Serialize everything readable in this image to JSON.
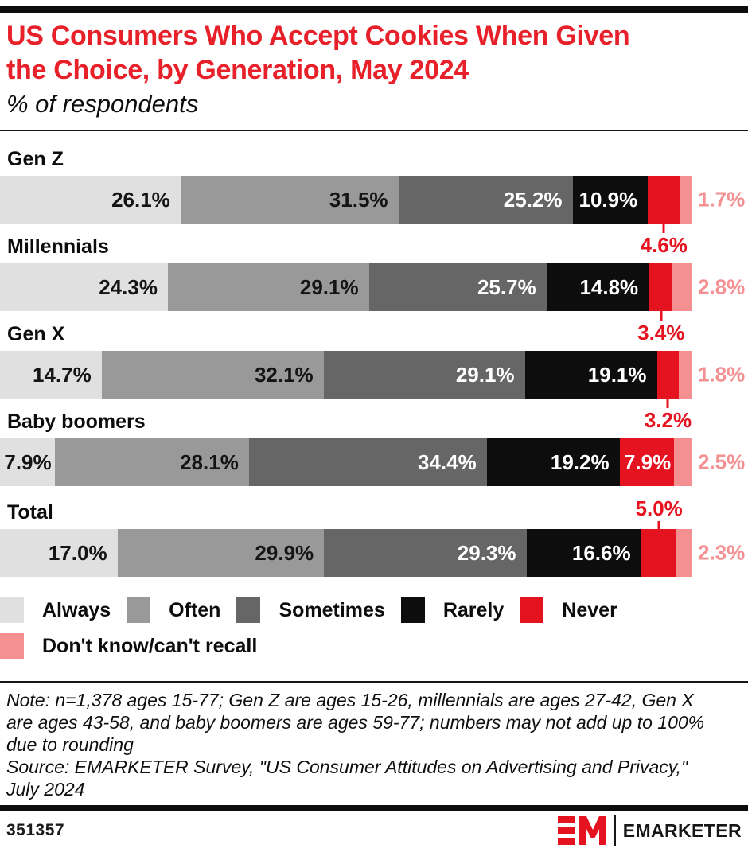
{
  "page": {
    "title_line1": "US Consumers Who Accept Cookies When Given",
    "title_line2": "the Choice, by Generation, May 2024",
    "subtitle": "% of respondents"
  },
  "colors": {
    "title_red": "#e7202a",
    "callout_red": "#e5131f",
    "Always": "#e0e0e0",
    "Often": "#999999",
    "Sometimes": "#666666",
    "Rarely": "#0d0d0d",
    "Never": "#e5131f",
    "Don't know/can't recall": "#f48f92"
  },
  "chart_data": {
    "type": "bar",
    "orientation": "horizontal_stacked",
    "title": "US Consumers Who Accept Cookies When Given the Choice, by Generation, May 2024",
    "subtitle": "% of respondents",
    "unit": "%",
    "xlim": [
      0,
      100
    ],
    "value_suffix": "%",
    "categories": [
      "Gen Z",
      "Millennials",
      "Gen X",
      "Baby boomers",
      "Total"
    ],
    "series": [
      {
        "name": "Always",
        "values": [
          26.1,
          24.3,
          14.7,
          7.9,
          17.0
        ]
      },
      {
        "name": "Often",
        "values": [
          31.5,
          29.1,
          32.1,
          28.1,
          29.9
        ]
      },
      {
        "name": "Sometimes",
        "values": [
          25.2,
          25.7,
          29.1,
          34.4,
          29.3
        ]
      },
      {
        "name": "Rarely",
        "values": [
          10.9,
          14.8,
          19.1,
          19.2,
          16.6
        ]
      },
      {
        "name": "Never",
        "values": [
          4.6,
          3.4,
          3.2,
          7.9,
          5.0
        ]
      },
      {
        "name": "Don't know/can't recall",
        "values": [
          1.7,
          2.8,
          1.8,
          2.5,
          2.3
        ]
      }
    ],
    "never_label_position": [
      "below",
      "below",
      "below",
      "inside",
      "above"
    ],
    "legend_position": "bottom"
  },
  "legend": {
    "rows": [
      [
        "Always",
        "Often",
        "Sometimes",
        "Rarely",
        "Never"
      ],
      [
        "Don't know/can't recall"
      ]
    ]
  },
  "note": {
    "note_text": "Note: n=1,378 ages 15-77; Gen Z are ages 15-26, millennials are ages 27-42, Gen X are ages 43-58, and baby boomers are ages 59-77; numbers may not add up to 100% due to rounding",
    "source_text": "Source: EMARKETER Survey, \"US Consumer Attitudes on Advertising and Privacy,\" July 2024"
  },
  "footer": {
    "chart_id": "351357",
    "brand_name": "EMARKETER",
    "logo_mark": "EM"
  }
}
